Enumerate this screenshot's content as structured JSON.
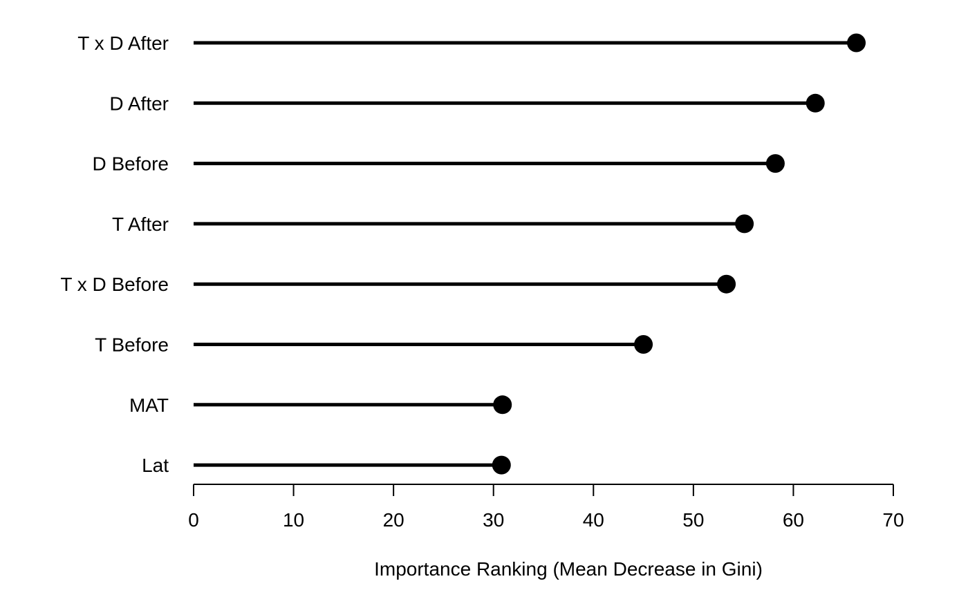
{
  "chart_data": {
    "type": "lollipop",
    "orientation": "horizontal",
    "categories": [
      "T x D After",
      "D After",
      "D Before",
      "T After",
      "T x D Before",
      "T Before",
      "MAT",
      "Lat"
    ],
    "values": [
      66.3,
      62.2,
      58.2,
      55.1,
      53.3,
      45.0,
      30.9,
      30.8
    ],
    "xlabel": "Importance Ranking (Mean Decrease in Gini)",
    "ylabel": "",
    "xlim": [
      0,
      70
    ],
    "xticks": [
      0,
      10,
      20,
      30,
      40,
      50,
      60,
      70
    ],
    "tick_labels": [
      "0",
      "10",
      "20",
      "30",
      "40",
      "50",
      "60",
      "70"
    ],
    "grid": false,
    "color": "#000000"
  }
}
